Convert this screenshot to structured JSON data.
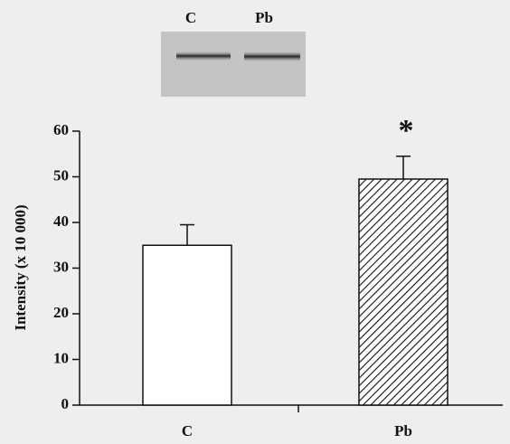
{
  "chart_data": {
    "type": "bar",
    "inset_labels": [
      "C",
      "Pb"
    ],
    "ylabel": "Intensity (x 10 000)",
    "categories": [
      "C",
      "Pb"
    ],
    "values": [
      35,
      49.5
    ],
    "errors": [
      4.5,
      5
    ],
    "hatched": [
      false,
      true
    ],
    "color": "#ffffff",
    "annotation": "*",
    "ylim": [
      0,
      60
    ],
    "yticks": [
      0,
      10,
      20,
      30,
      40,
      50,
      60
    ]
  }
}
